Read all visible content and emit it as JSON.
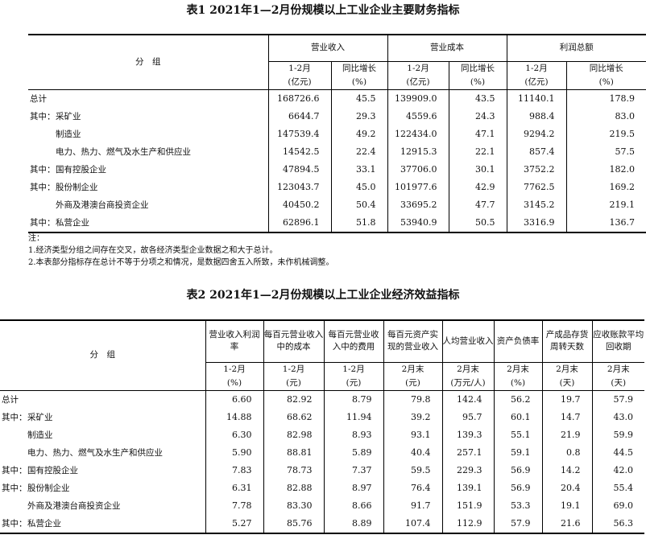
{
  "table1": {
    "title": "表1 2021年1—2月份规模以上工业企业主要财务指标",
    "group_header": "分　组",
    "metrics": [
      "营业收入",
      "营业成本",
      "利润总额"
    ],
    "subheaders": [
      [
        "1-2月",
        "(亿元)"
      ],
      [
        "同比增长",
        "(%)"
      ],
      [
        "1-2月",
        "(亿元)"
      ],
      [
        "同比增长",
        "(%)"
      ],
      [
        "1-2月",
        "(亿元)"
      ],
      [
        "同比增长",
        "(%)"
      ]
    ],
    "rows": [
      {
        "prefix": "",
        "name": "总计",
        "values": [
          "168726.6",
          "45.5",
          "139909.0",
          "43.5",
          "11140.1",
          "178.9"
        ]
      },
      {
        "prefix": "其中：",
        "name": "采矿业",
        "values": [
          "6644.7",
          "29.3",
          "4559.6",
          "24.3",
          "988.4",
          "83.0"
        ]
      },
      {
        "prefix": "",
        "name": "制造业",
        "indent": true,
        "values": [
          "147539.4",
          "49.2",
          "122434.0",
          "47.1",
          "9294.2",
          "219.5"
        ]
      },
      {
        "prefix": "",
        "name": "电力、热力、燃气及水生产和供应业",
        "indent": true,
        "values": [
          "14542.5",
          "22.4",
          "12915.3",
          "22.1",
          "857.4",
          "57.5"
        ]
      },
      {
        "prefix": "其中：",
        "name": "国有控股企业",
        "values": [
          "47894.5",
          "33.1",
          "37706.0",
          "30.1",
          "3752.2",
          "182.0"
        ]
      },
      {
        "prefix": "其中：",
        "name": "股份制企业",
        "values": [
          "123043.7",
          "45.0",
          "101977.6",
          "42.9",
          "7762.5",
          "169.2"
        ]
      },
      {
        "prefix": "",
        "name": "外商及港澳台商投资企业",
        "indent": true,
        "values": [
          "40450.2",
          "50.4",
          "33695.2",
          "47.7",
          "3145.2",
          "219.1"
        ]
      },
      {
        "prefix": "其中：",
        "name": "私营企业",
        "values": [
          "62896.1",
          "51.8",
          "53940.9",
          "50.5",
          "3316.9",
          "136.7"
        ]
      }
    ],
    "notes": [
      "注：",
      "1.经济类型分组之间存在交叉，故各经济类型企业数据之和大于总计。",
      "2.本表部分指标存在总计不等于分项之和情况，是数据四舍五入所致，未作机械调整。"
    ]
  },
  "table2": {
    "title": "表2 2021年1—2月份规模以上工业企业经济效益指标",
    "group_header": "分　组",
    "metrics": [
      "营业收入利润率",
      "每百元营业收入中的成本",
      "每百元营业收入中的费用",
      "每百元资产实现的营业收入",
      "人均营业收入",
      "资产负债率",
      "产成品存货周转天数",
      "应收账款平均回收期"
    ],
    "subheaders": [
      [
        "1-2月",
        "(%)"
      ],
      [
        "1-2月",
        "(元)"
      ],
      [
        "1-2月",
        "(元)"
      ],
      [
        "2月末",
        "(元)"
      ],
      [
        "2月末",
        "(万元/人)"
      ],
      [
        "2月末",
        "(%)"
      ],
      [
        "2月末",
        "(天)"
      ],
      [
        "2月末",
        "(天)"
      ]
    ],
    "rows": [
      {
        "prefix": "",
        "name": "总计",
        "values": [
          "6.60",
          "82.92",
          "8.79",
          "79.8",
          "142.4",
          "56.2",
          "19.7",
          "57.9"
        ]
      },
      {
        "prefix": "其中：",
        "name": "采矿业",
        "values": [
          "14.88",
          "68.62",
          "11.94",
          "39.2",
          "95.7",
          "60.1",
          "14.7",
          "43.0"
        ]
      },
      {
        "prefix": "",
        "name": "制造业",
        "indent": true,
        "values": [
          "6.30",
          "82.98",
          "8.93",
          "93.1",
          "139.3",
          "55.1",
          "21.9",
          "59.9"
        ]
      },
      {
        "prefix": "",
        "name": "电力、热力、燃气及水生产和供应业",
        "indent": true,
        "values": [
          "5.90",
          "88.81",
          "5.89",
          "40.4",
          "257.1",
          "59.1",
          "0.8",
          "44.5"
        ]
      },
      {
        "prefix": "其中：",
        "name": "国有控股企业",
        "values": [
          "7.83",
          "78.73",
          "7.37",
          "59.5",
          "229.3",
          "56.9",
          "14.2",
          "42.0"
        ]
      },
      {
        "prefix": "其中：",
        "name": "股份制企业",
        "values": [
          "6.31",
          "82.88",
          "8.97",
          "76.4",
          "139.1",
          "56.9",
          "20.4",
          "55.4"
        ]
      },
      {
        "prefix": "",
        "name": "外商及港澳台商投资企业",
        "indent": true,
        "values": [
          "7.78",
          "83.30",
          "8.66",
          "91.7",
          "151.9",
          "53.3",
          "19.1",
          "69.0"
        ]
      },
      {
        "prefix": "其中：",
        "name": "私营企业",
        "values": [
          "5.27",
          "85.76",
          "8.89",
          "107.4",
          "112.9",
          "57.9",
          "21.6",
          "56.3"
        ]
      }
    ]
  }
}
